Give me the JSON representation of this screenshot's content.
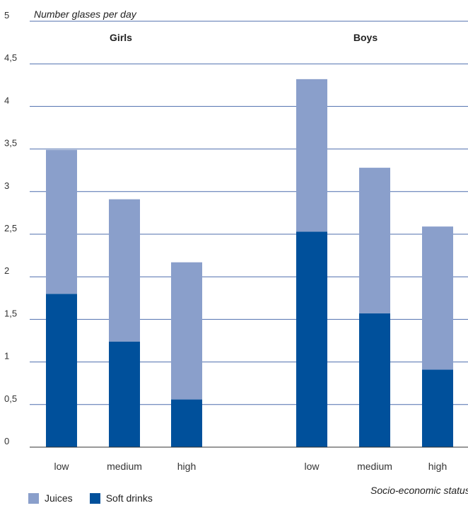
{
  "chart_data": {
    "type": "bar",
    "stacked": true,
    "ylabel": "Number glases per day",
    "xlabel": "Socio-economic status",
    "ylim": [
      0,
      5
    ],
    "yticks": [
      0,
      0.5,
      1,
      1.5,
      2,
      2.5,
      3,
      3.5,
      4,
      4.5,
      5
    ],
    "ytick_labels": [
      "0",
      "0,5",
      "1",
      "1,5",
      "2",
      "2,5",
      "3",
      "3,5",
      "4",
      "4,5",
      "5"
    ],
    "groups": [
      "Girls",
      "Boys"
    ],
    "categories": [
      "low",
      "medium",
      "high"
    ],
    "series": [
      {
        "name": "Soft drinks",
        "color": "#00509b",
        "values": {
          "Girls": [
            1.8,
            1.24,
            0.56
          ],
          "Boys": [
            2.53,
            1.57,
            0.91
          ]
        }
      },
      {
        "name": "Juices",
        "color": "#8a9fcb",
        "values": {
          "Girls": [
            1.69,
            1.67,
            1.61
          ],
          "Boys": [
            1.79,
            1.71,
            1.68
          ]
        }
      }
    ],
    "grid": true,
    "legend_position": "bottom-left"
  }
}
